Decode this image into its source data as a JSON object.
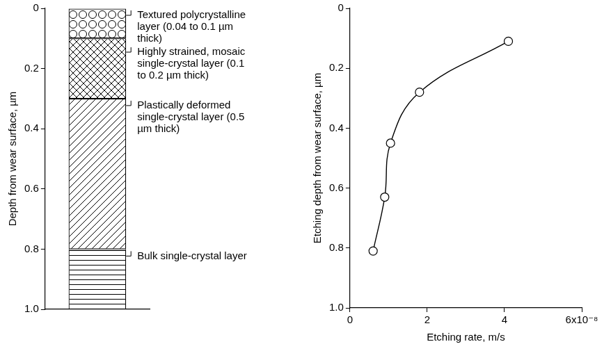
{
  "chart_data": [
    {
      "type": "layers",
      "ylabel": "Depth from wear surface, µm",
      "ylim": [
        0,
        1
      ],
      "yticks": [
        0,
        0.2,
        0.4,
        0.6,
        0.8,
        {
          "value": 1,
          "label": "1.0"
        }
      ],
      "grid": false,
      "tick_labels": "y",
      "layers": [
        {
          "name": "Textured polycrystalline layer (0.04 to 0.1 µm thick)",
          "values": [
            0,
            0.1
          ],
          "marker": "circle"
        },
        {
          "name": "Highly strained, mosaic single-crystal layer (0.1 to 0.2 µm thick)",
          "values": [
            0.1,
            0.3
          ],
          "marker": "crosshatch"
        },
        {
          "name": "Plastically deformed single-crystal layer (0.5 µm thick)",
          "values": [
            0.3,
            0.8
          ],
          "marker": "diagonal"
        },
        {
          "name": "Bulk single-crystal layer",
          "values": [
            0.8,
            1
          ],
          "marker": "horizontal"
        }
      ]
    },
    {
      "type": "line",
      "xlabel": "Etching rate, m/s",
      "ylabel": "Etching depth from wear surface, µm",
      "x": [
        4.1e-08,
        1.8e-08,
        1.05e-08,
        9e-09,
        6e-09
      ],
      "values": [
        0.11,
        0.28,
        0.45,
        0.63,
        0.81
      ],
      "xlim": [
        0,
        6e-08
      ],
      "xticks": [
        0,
        {
          "value": 2e-08,
          "label": "2"
        },
        {
          "value": 4e-08,
          "label": "4"
        },
        {
          "value": 6e-08,
          "label": "6x10⁻⁸"
        }
      ],
      "ylim": [
        0,
        1
      ],
      "yticks": [
        0,
        0.2,
        0.4,
        0.6,
        0.8,
        {
          "value": 1,
          "label": "1.0"
        }
      ],
      "color": "#000000",
      "marker": "circle",
      "line_style": "solid",
      "grid": false
    }
  ]
}
